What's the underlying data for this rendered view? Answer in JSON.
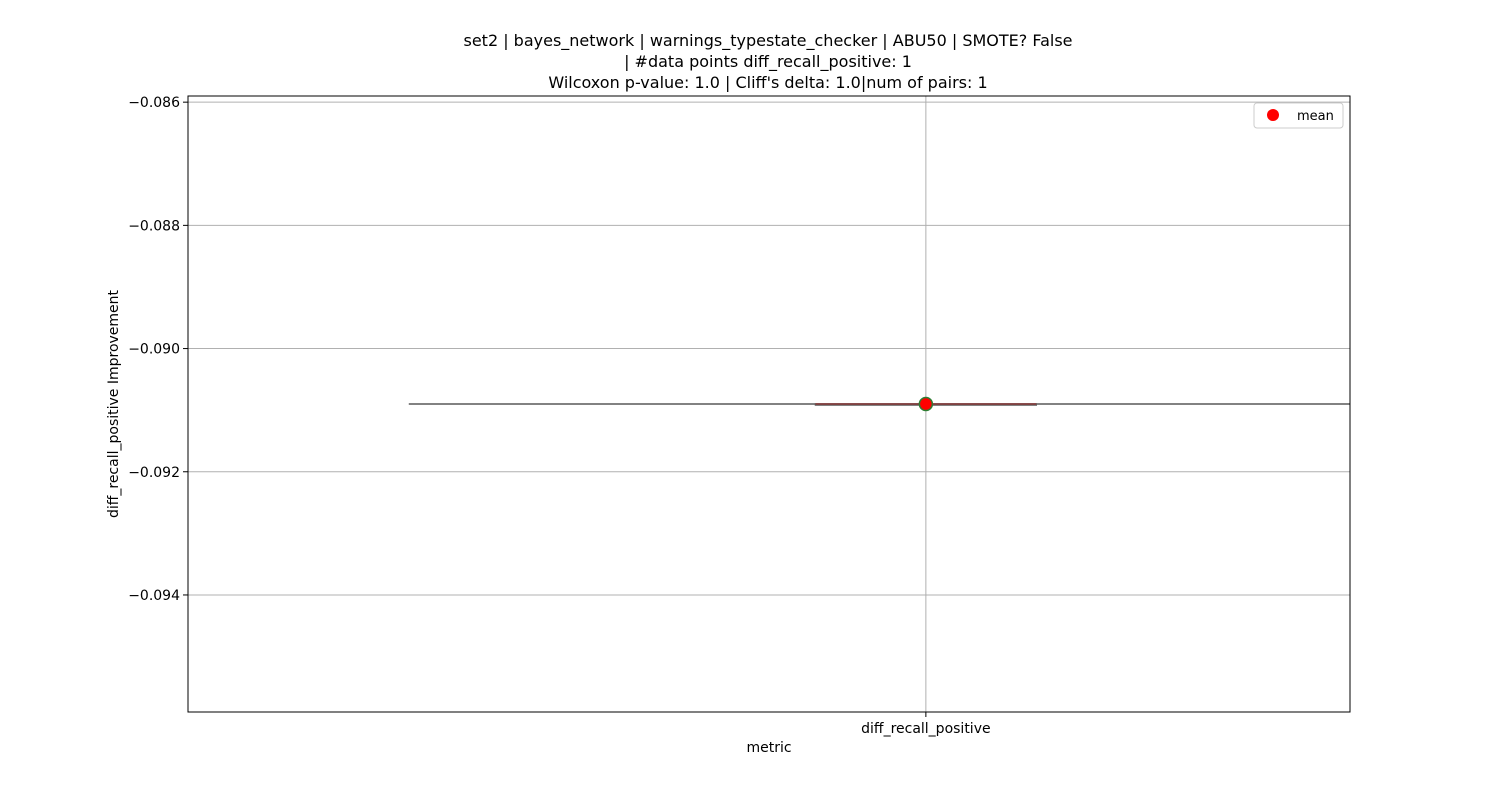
{
  "chart_data": {
    "type": "box",
    "title_lines": [
      "set2 | bayes_network | warnings_typestate_checker | ABU50 | SMOTE? False",
      "| #data points diff_recall_positive: 1",
      "Wilcoxon p-value: 1.0 | Cliff's delta: 1.0|num of pairs: 1"
    ],
    "xlabel": "metric",
    "ylabel": "diff_recall_positive Improvement",
    "categories": [
      "diff_recall_positive"
    ],
    "series": [
      {
        "name": "mean",
        "values": [
          -0.0909
        ]
      }
    ],
    "box_stats": [
      {
        "category": "diff_recall_positive",
        "min": -0.0909,
        "q1": -0.0909,
        "median": -0.0909,
        "q3": -0.0909,
        "max": -0.0909,
        "mean": -0.0909
      }
    ],
    "yticks": [
      -0.086,
      -0.088,
      -0.09,
      -0.092,
      -0.094
    ],
    "ytick_labels": [
      "−0.086",
      "−0.088",
      "−0.090",
      "−0.092",
      "−0.094"
    ],
    "ylim": [
      -0.0959,
      -0.0859
    ],
    "grid": true,
    "legend": {
      "entries": [
        "mean"
      ],
      "position": "top-right"
    },
    "colors": {
      "mean_marker": "#ff0000",
      "mean_edge": "#2e7d32",
      "box_line": "#595959",
      "median_line": "#8b3a3a",
      "grid": "#b0b0b0"
    }
  }
}
